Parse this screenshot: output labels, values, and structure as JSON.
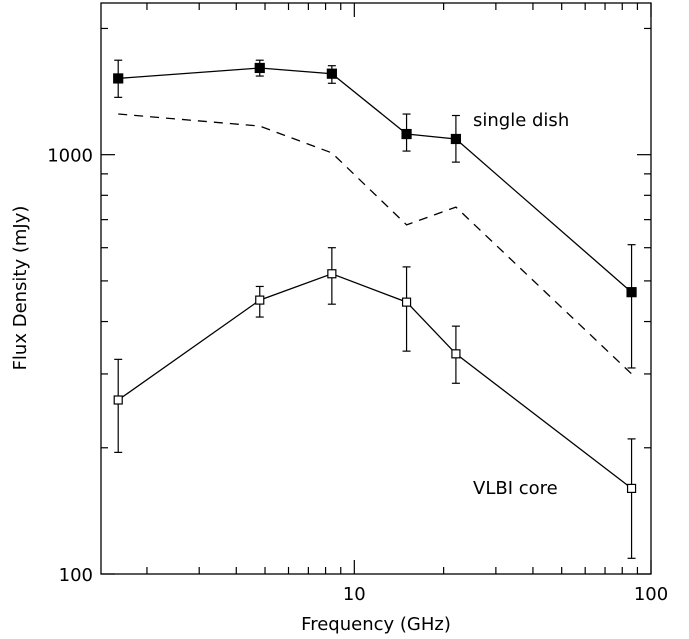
{
  "chart_data": {
    "type": "line",
    "xlabel": "Frequency (GHz)",
    "ylabel": "Flux Density (mJy)",
    "x_scale": "log",
    "y_scale": "log",
    "xlim": [
      1.4,
      100
    ],
    "ylim": [
      100,
      2300
    ],
    "x_tick_labels": [
      "10",
      "100"
    ],
    "y_tick_labels": [
      "100",
      "1000"
    ],
    "grid": false,
    "series": [
      {
        "name": "single dish",
        "style": "solid",
        "marker": "filled-square",
        "x": [
          1.6,
          4.8,
          8.4,
          15,
          22,
          86
        ],
        "y": [
          1520,
          1610,
          1560,
          1120,
          1090,
          470
        ],
        "err_low": [
          1370,
          1540,
          1480,
          1020,
          960,
          310
        ],
        "err_high": [
          1680,
          1680,
          1630,
          1250,
          1240,
          610
        ]
      },
      {
        "name": "",
        "style": "dashed",
        "marker": "none",
        "x": [
          1.6,
          4.8,
          8.4,
          15,
          22,
          86
        ],
        "y": [
          1250,
          1170,
          1010,
          680,
          750,
          300
        ]
      },
      {
        "name": "VLBI core",
        "style": "solid",
        "marker": "open-square",
        "x": [
          1.6,
          4.8,
          8.4,
          15,
          22,
          86
        ],
        "y": [
          260,
          450,
          520,
          445,
          335,
          160
        ],
        "err_low": [
          195,
          410,
          440,
          340,
          285,
          109
        ],
        "err_high": [
          325,
          485,
          600,
          540,
          390,
          210
        ]
      }
    ],
    "annotations": [
      "single dish",
      "VLBI core"
    ]
  }
}
